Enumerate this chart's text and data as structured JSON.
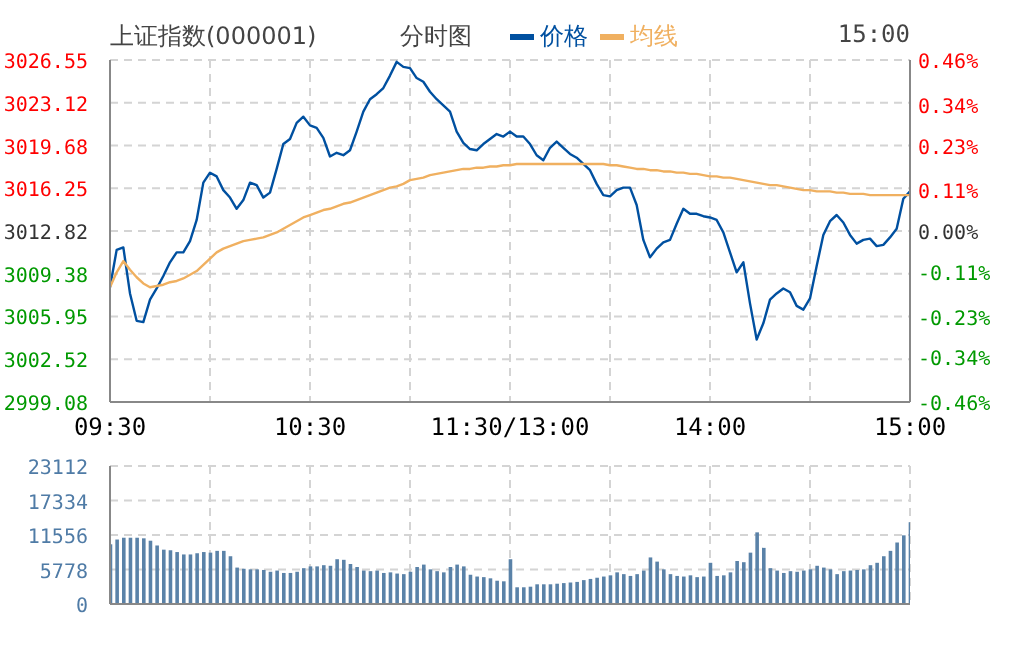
{
  "chart_data": [
    {
      "type": "line",
      "title": "上证指数(000001)",
      "subtitle": "分时图",
      "annotations": [
        "15:00"
      ],
      "legend": "top",
      "grid": true,
      "categories": [
        "09:30",
        null,
        null,
        null,
        null,
        null,
        null,
        null,
        null,
        null,
        null,
        null,
        null,
        null,
        null,
        null,
        null,
        null,
        null,
        null,
        null,
        null,
        null,
        null,
        null,
        null,
        null,
        null,
        null,
        null,
        "10:30",
        null,
        null,
        null,
        null,
        null,
        null,
        null,
        null,
        null,
        null,
        null,
        null,
        null,
        null,
        null,
        null,
        null,
        null,
        null,
        null,
        null,
        null,
        null,
        null,
        null,
        null,
        null,
        null,
        null,
        "11:30/13:00",
        null,
        null,
        null,
        null,
        null,
        null,
        null,
        null,
        null,
        null,
        null,
        null,
        null,
        null,
        null,
        null,
        null,
        null,
        null,
        null,
        null,
        null,
        null,
        null,
        null,
        null,
        null,
        null,
        null,
        "14:00",
        null,
        null,
        null,
        null,
        null,
        null,
        null,
        null,
        null,
        null,
        null,
        null,
        null,
        null,
        null,
        null,
        null,
        null,
        null,
        null,
        null,
        null,
        null,
        null,
        null,
        null,
        null,
        null,
        null,
        "15:00"
      ],
      "ylim": [
        2999.08,
        3026.55
      ],
      "yticks": [
        2999.08,
        3002.52,
        3005.95,
        3009.38,
        3012.82,
        3016.25,
        3019.68,
        3023.12,
        3026.55
      ],
      "y2lim": [
        -0.46,
        0.46
      ],
      "y2ticks": [
        {
          "value": -0.46,
          "label": "-0.46%"
        },
        {
          "value": -0.34,
          "label": "-0.34%"
        },
        {
          "value": -0.23,
          "label": "-0.23%"
        },
        {
          "value": -0.11,
          "label": "-0.11%"
        },
        {
          "value": 0,
          "label": "0.00%"
        },
        {
          "value": 0.11,
          "label": "0.11%"
        },
        {
          "value": 0.23,
          "label": "0.23%"
        },
        {
          "value": 0.34,
          "label": "0.34%"
        },
        {
          "value": 0.46,
          "label": "0.46%"
        }
      ],
      "series": [
        {
          "name": "价格",
          "color": "#0050a0",
          "values": [
            3008.3,
            3011.3,
            3011.5,
            3007.8,
            3005.6,
            3005.5,
            3007.3,
            3008.2,
            3009.2,
            3010.3,
            3011.1,
            3011.1,
            3012.0,
            3013.7,
            3016.7,
            3017.5,
            3017.2,
            3016.1,
            3015.5,
            3014.6,
            3015.3,
            3016.7,
            3016.5,
            3015.5,
            3015.9,
            3017.8,
            3019.8,
            3020.2,
            3021.5,
            3022.0,
            3021.3,
            3021.1,
            3020.3,
            3018.8,
            3019.1,
            3018.9,
            3019.3,
            3020.8,
            3022.4,
            3023.4,
            3023.8,
            3024.3,
            3025.3,
            3026.4,
            3026.0,
            3025.9,
            3025.1,
            3024.8,
            3024.0,
            3023.4,
            3022.9,
            3022.4,
            3020.8,
            3019.9,
            3019.4,
            3019.3,
            3019.8,
            3020.2,
            3020.6,
            3020.4,
            3020.8,
            3020.4,
            3020.4,
            3019.8,
            3018.9,
            3018.5,
            3019.5,
            3020.0,
            3019.5,
            3019.0,
            3018.7,
            3018.2,
            3017.7,
            3016.6,
            3015.7,
            3015.6,
            3016.1,
            3016.3,
            3016.3,
            3014.9,
            3012.1,
            3010.7,
            3011.4,
            3011.9,
            3012.1,
            3013.4,
            3014.6,
            3014.2,
            3014.2,
            3014.0,
            3013.9,
            3013.7,
            3012.7,
            3011.1,
            3009.5,
            3010.3,
            3007.0,
            3004.1,
            3005.4,
            3007.3,
            3007.8,
            3008.2,
            3007.9,
            3006.8,
            3006.5,
            3007.4,
            3010.0,
            3012.5,
            3013.6,
            3014.1,
            3013.5,
            3012.5,
            3011.8,
            3012.1,
            3012.2,
            3011.6,
            3011.7,
            3012.3,
            3013.0,
            3015.4,
            3016.0
          ]
        },
        {
          "name": "均线",
          "color": "#f0b060",
          "values": [
            3008.3,
            3009.5,
            3010.4,
            3009.7,
            3009.1,
            3008.6,
            3008.3,
            3008.4,
            3008.5,
            3008.7,
            3008.8,
            3009.0,
            3009.3,
            3009.6,
            3010.1,
            3010.6,
            3011.1,
            3011.4,
            3011.6,
            3011.8,
            3012.0,
            3012.1,
            3012.2,
            3012.3,
            3012.5,
            3012.7,
            3013.0,
            3013.3,
            3013.6,
            3013.9,
            3014.1,
            3014.3,
            3014.5,
            3014.6,
            3014.8,
            3015.0,
            3015.1,
            3015.3,
            3015.5,
            3015.7,
            3015.9,
            3016.1,
            3016.3,
            3016.4,
            3016.6,
            3016.9,
            3017.0,
            3017.1,
            3017.3,
            3017.4,
            3017.5,
            3017.6,
            3017.7,
            3017.8,
            3017.8,
            3017.9,
            3017.9,
            3018.0,
            3018.0,
            3018.1,
            3018.1,
            3018.2,
            3018.2,
            3018.2,
            3018.2,
            3018.2,
            3018.2,
            3018.2,
            3018.2,
            3018.2,
            3018.2,
            3018.2,
            3018.2,
            3018.2,
            3018.2,
            3018.1,
            3018.1,
            3018.0,
            3017.9,
            3017.8,
            3017.8,
            3017.7,
            3017.7,
            3017.6,
            3017.6,
            3017.5,
            3017.5,
            3017.4,
            3017.4,
            3017.3,
            3017.2,
            3017.2,
            3017.1,
            3017.1,
            3017.0,
            3016.9,
            3016.8,
            3016.7,
            3016.6,
            3016.5,
            3016.5,
            3016.4,
            3016.3,
            3016.2,
            3016.1,
            3016.1,
            3016.0,
            3016.0,
            3016.0,
            3015.9,
            3015.9,
            3015.8,
            3015.8,
            3015.8,
            3015.7,
            3015.7,
            3015.7,
            3015.7,
            3015.7,
            3015.7,
            3015.7
          ]
        }
      ]
    },
    {
      "type": "bar",
      "color": "#5a82a8",
      "grid": true,
      "tick_labels": "y",
      "categories": [
        null,
        null,
        null,
        null,
        null,
        null,
        null,
        null,
        null,
        null,
        null,
        null,
        null,
        null,
        null,
        null,
        null,
        null,
        null,
        null,
        null,
        null,
        null,
        null,
        null,
        null,
        null,
        null,
        null,
        null,
        null,
        null,
        null,
        null,
        null,
        null,
        null,
        null,
        null,
        null,
        null,
        null,
        null,
        null,
        null,
        null,
        null,
        null,
        null,
        null,
        null,
        null,
        null,
        null,
        null,
        null,
        null,
        null,
        null,
        null,
        null,
        null,
        null,
        null,
        null,
        null,
        null,
        null,
        null,
        null,
        null,
        null,
        null,
        null,
        null,
        null,
        null,
        null,
        null,
        null,
        null,
        null,
        null,
        null,
        null,
        null,
        null,
        null,
        null,
        null,
        null,
        null,
        null,
        null,
        null,
        null,
        null,
        null,
        null,
        null,
        null,
        null,
        null,
        null,
        null,
        null,
        null,
        null,
        null,
        null,
        null,
        null,
        null,
        null,
        null,
        null,
        null,
        null,
        null,
        null,
        null
      ],
      "ylim": [
        0,
        23112
      ],
      "yticks": [
        0,
        5778,
        11556,
        17334,
        23112
      ],
      "values": [
        10000,
        10800,
        11100,
        11100,
        11100,
        11000,
        10600,
        9800,
        9100,
        9000,
        8700,
        8300,
        8300,
        8500,
        8700,
        8600,
        8900,
        8900,
        8000,
        6100,
        5900,
        5800,
        5800,
        5700,
        5400,
        5600,
        5200,
        5200,
        5400,
        6000,
        6300,
        6300,
        6500,
        6400,
        7500,
        7400,
        6700,
        6200,
        5600,
        5500,
        5600,
        5200,
        5300,
        5100,
        5000,
        5400,
        6200,
        6600,
        5800,
        5500,
        5300,
        6200,
        6600,
        6300,
        4900,
        4600,
        4500,
        4300,
        3900,
        3800,
        7500,
        2800,
        2800,
        2900,
        3300,
        3300,
        3300,
        3400,
        3500,
        3600,
        3700,
        4000,
        4200,
        4400,
        4600,
        4800,
        5300,
        5000,
        4700,
        5000,
        5600,
        7800,
        7100,
        5800,
        5000,
        4700,
        4600,
        4800,
        4500,
        4600,
        6900,
        4700,
        4800,
        5300,
        7200,
        7000,
        8600,
        12000,
        9400,
        6000,
        5600,
        5200,
        5500,
        5400,
        5600,
        5800,
        6400,
        6100,
        5800,
        5000,
        5500,
        5600,
        5700,
        5800,
        6500,
        6900,
        8000,
        8900,
        10300,
        11500,
        13700
      ]
    }
  ]
}
